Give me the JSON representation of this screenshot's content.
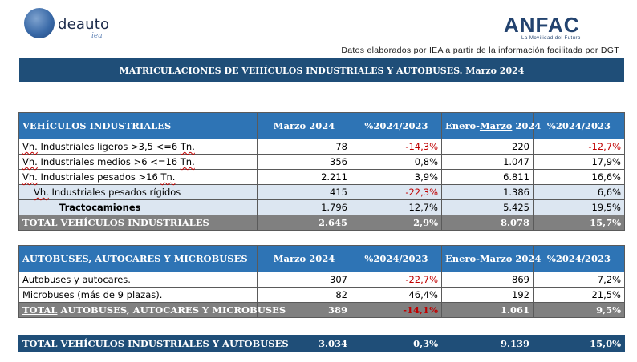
{
  "logos": {
    "ideauto_word": "deauto",
    "ideauto_sub": "iea",
    "anfac_word": "ANFAC",
    "anfac_tagline": "La Movilidad del Futuro"
  },
  "source_note": "Datos elaborados por IEA a partir de la información facilitada por DGT",
  "banner_title": "MATRICULACIONES DE VEHÍCULOS INDUSTRIALES Y AUTOBUSES.  Marzo 2024",
  "industriales": {
    "headers": {
      "section": "VEHÍCULOS INDUSTRIALES",
      "month": "Marzo 2024",
      "pct1": "%2024/2023",
      "ytd_prefix": "Enero-",
      "ytd_month": "Marzo",
      "ytd_suffix": " 2024",
      "pct2": "%2024/2023"
    },
    "rows": [
      {
        "label_a": "Vh.",
        "label_b": " Industriales ligeros >3,5 <=6 ",
        "label_c": "Tn.",
        "month": "78",
        "pct1": "-14,3%",
        "ytd": "220",
        "pct2": "-12,7%"
      },
      {
        "label_a": "Vh.",
        "label_b": " Industriales medios >6  <=16 ",
        "label_c": "Tn.",
        "month": "356",
        "pct1": "0,8%",
        "ytd": "1.047",
        "pct2": "17,9%"
      },
      {
        "label_a": "Vh.",
        "label_b": " Industriales  pesados >16 ",
        "label_c": "Tn.",
        "month": "2.211",
        "pct1": "3,9%",
        "ytd": "6.811",
        "pct2": "16,6%"
      },
      {
        "label_a": "Vh.",
        "label_b": " Industriales pesados rígidos",
        "label_c": "",
        "month": "415",
        "pct1": "-22,3%",
        "ytd": "1.386",
        "pct2": "6,6%"
      },
      {
        "label_a": "",
        "label_b": "Tractocamiones",
        "label_c": "",
        "month": "1.796",
        "pct1": "12,7%",
        "ytd": "5.425",
        "pct2": "19,5%"
      }
    ],
    "total": {
      "label_a": "TOTAL",
      "label_b": "  VEHÍCULOS INDUSTRIALES",
      "month": "2.645",
      "pct1": "2,9%",
      "ytd": "8.078",
      "pct2": "15,7%"
    }
  },
  "autobuses": {
    "headers": {
      "section": "AUTOBUSES, AUTOCARES Y MICROBUSES",
      "month": "Marzo 2024",
      "pct1": "%2024/2023",
      "ytd_prefix": "Enero-",
      "ytd_month": "Marzo",
      "ytd_suffix": " 2024",
      "pct2": "%2024/2023"
    },
    "rows": [
      {
        "label": "Autobuses y autocares.",
        "month": "307",
        "pct1": "-22,7%",
        "ytd": "869",
        "pct2": "7,2%"
      },
      {
        "label": "Microbuses (más de 9 plazas).",
        "month": "82",
        "pct1": "46,4%",
        "ytd": "192",
        "pct2": "21,5%"
      }
    ],
    "total": {
      "label_a": "TOTAL",
      "label_b": "  AUTOBUSES, AUTOCARES Y MICROBUSES",
      "month": "389",
      "pct1": "-14,1%",
      "ytd": "1.061",
      "pct2": "9,5%"
    }
  },
  "grand_total": {
    "label_a": "TOTAL",
    "label_b": " VEHÍCULOS INDUSTRIALES Y AUTOBUSES",
    "month": "3.034",
    "pct1": "0,3%",
    "ytd": "9.139",
    "pct2": "15,0%"
  }
}
